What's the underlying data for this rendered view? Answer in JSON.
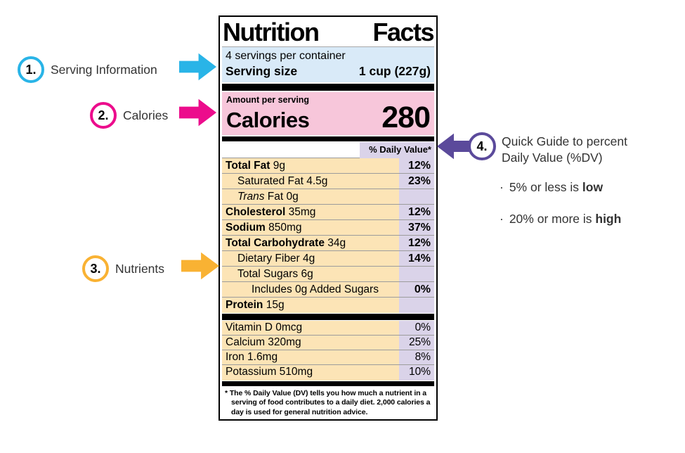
{
  "colors": {
    "cyan": "#29b4e7",
    "magenta": "#ec0c8c",
    "orange": "#f9b233",
    "purple": "#5b4a9b",
    "blue_band": "#d9eaf8",
    "pink_band": "#f7c6da",
    "peach_band": "#fce4b6",
    "lavender_band": "#dad3e9"
  },
  "nutrition_label": {
    "title": "Nutrition Facts",
    "serving_info": {
      "line1": "4 servings per container",
      "label": "Serving size",
      "value": "1 cup (227g)"
    },
    "calories": {
      "header": "Amount per serving",
      "label": "Calories",
      "value": "280"
    },
    "dv_header": "% Daily Value*",
    "nutrient_rows": [
      {
        "parts": [
          {
            "t": "Total Fat",
            "b": 1
          },
          {
            "t": " 9g"
          }
        ],
        "pct": "12%",
        "pb": 1,
        "ind": 0
      },
      {
        "parts": [
          {
            "t": "Saturated Fat 4.5g"
          }
        ],
        "pct": "23%",
        "pb": 1,
        "ind": 1
      },
      {
        "parts": [
          {
            "t": "Trans",
            "i": 1
          },
          {
            "t": " Fat 0g"
          }
        ],
        "pct": "",
        "pb": 0,
        "ind": 1
      },
      {
        "parts": [
          {
            "t": "Cholesterol",
            "b": 1
          },
          {
            "t": " 35mg"
          }
        ],
        "pct": "12%",
        "pb": 1,
        "ind": 0
      },
      {
        "parts": [
          {
            "t": "Sodium",
            "b": 1
          },
          {
            "t": " 850mg"
          }
        ],
        "pct": "37%",
        "pb": 1,
        "ind": 0
      },
      {
        "parts": [
          {
            "t": "Total Carbohydrate",
            "b": 1
          },
          {
            "t": " 34g"
          }
        ],
        "pct": "12%",
        "pb": 1,
        "ind": 0
      },
      {
        "parts": [
          {
            "t": "Dietary Fiber 4g"
          }
        ],
        "pct": "14%",
        "pb": 1,
        "ind": 1
      },
      {
        "parts": [
          {
            "t": "Total Sugars 6g"
          }
        ],
        "pct": "",
        "pb": 0,
        "ind": 1
      },
      {
        "parts": [
          {
            "t": "Includes 0g Added Sugars"
          }
        ],
        "pct": "0%",
        "pb": 1,
        "ind": 2
      },
      {
        "parts": [
          {
            "t": "Protein",
            "b": 1
          },
          {
            "t": " 15g"
          }
        ],
        "pct": "",
        "pb": 0,
        "ind": 0
      }
    ],
    "vitamin_rows": [
      {
        "parts": [
          {
            "t": "Vitamin D 0mcg"
          }
        ],
        "pct": "0%",
        "pb": 0,
        "ind": 0
      },
      {
        "parts": [
          {
            "t": "Calcium 320mg"
          }
        ],
        "pct": "25%",
        "pb": 0,
        "ind": 0
      },
      {
        "parts": [
          {
            "t": "Iron 1.6mg"
          }
        ],
        "pct": "8%",
        "pb": 0,
        "ind": 0
      },
      {
        "parts": [
          {
            "t": "Potassium 510mg"
          }
        ],
        "pct": "10%",
        "pb": 0,
        "ind": 0
      }
    ],
    "footnote_mark": "*",
    "footnote": "The % Daily Value (DV) tells you how much a nutrient in a serving of food contributes to a daily diet. 2,000 calories a day is used for general nutrition advice."
  },
  "annotations": {
    "serving": {
      "number": "1.",
      "label": "Serving Information"
    },
    "calories": {
      "number": "2.",
      "label": "Calories"
    },
    "nutrients": {
      "number": "3.",
      "label": "Nutrients"
    },
    "daily_value": {
      "number": "4.",
      "line1": "Quick Guide to percent",
      "line2": "Daily Value (%DV)",
      "bullet_char": "·",
      "bullets": [
        {
          "text": "5% or less is ",
          "bold": "low"
        },
        {
          "text": "20% or more is ",
          "bold": "high"
        }
      ]
    }
  }
}
